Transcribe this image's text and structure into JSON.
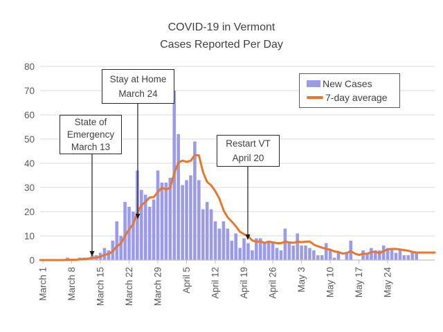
{
  "title": {
    "line1": "COVID-19 in Vermont",
    "line2": "Cases Reported Per Day"
  },
  "legend": {
    "items": [
      {
        "label": "New Cases",
        "type": "bar"
      },
      {
        "label": "7-day average",
        "type": "line"
      }
    ]
  },
  "annotations": [
    {
      "lines": [
        "State of",
        "Emergency",
        "March 13"
      ]
    },
    {
      "lines": [
        "Stay at Home",
        "March 24"
      ]
    },
    {
      "lines": [
        "Restart VT",
        "April 20"
      ]
    }
  ],
  "colors": {
    "bar": "#9b9be8",
    "line": "#e8772e",
    "grid": "#d9d9d9",
    "axis": "#bfbfbf",
    "text": "#404040",
    "tick_text": "#595959",
    "annotation_arrow": "#1a1a1a"
  },
  "chart_data": {
    "type": "bar",
    "title": "COVID-19 in Vermont",
    "subtitle": "Cases Reported Per Day",
    "xlabel": "",
    "ylabel": "",
    "x_unit": "day",
    "date_range": "March 1 - May 31",
    "x_tick_labels": [
      "March 1",
      "March 8",
      "March 15",
      "March 22",
      "March 29",
      "April 5",
      "April 12",
      "April 19",
      "April 26",
      "May 3",
      "May 10",
      "May 17",
      "May 24"
    ],
    "x_tick_day_indices": [
      0,
      7,
      14,
      21,
      28,
      35,
      42,
      49,
      56,
      63,
      70,
      77,
      84
    ],
    "ylim": [
      0,
      80
    ],
    "y_ticks": [
      0,
      10,
      20,
      30,
      40,
      50,
      60,
      70,
      80
    ],
    "grid": "horizontal",
    "legend_position": "top-right",
    "series": [
      {
        "name": "New Cases",
        "type": "bar",
        "values": [
          0,
          0,
          0,
          0,
          0,
          0,
          1,
          0,
          0,
          1,
          1,
          1,
          2,
          2,
          3,
          5,
          4,
          8,
          16,
          10,
          24,
          22,
          20,
          37,
          29,
          27,
          22,
          25,
          37,
          32,
          32,
          34,
          70,
          52,
          31,
          33,
          35,
          49,
          33,
          21,
          24,
          21,
          16,
          13,
          16,
          13,
          8,
          11,
          5,
          9,
          7,
          4,
          9,
          9,
          7,
          8,
          7,
          5,
          4,
          13,
          7,
          6,
          11,
          6,
          6,
          5,
          4,
          2,
          2,
          7,
          4,
          1,
          3,
          0,
          3,
          8,
          0,
          0,
          4,
          3,
          5,
          4,
          4,
          6,
          5,
          5,
          3,
          4,
          2,
          2,
          3,
          3
        ]
      },
      {
        "name": "7-day average",
        "type": "line",
        "values": [
          0,
          0,
          0,
          0,
          0,
          0,
          0.1,
          0.1,
          0.1,
          0.3,
          0.4,
          0.6,
          0.9,
          1.0,
          1.4,
          2.1,
          2.6,
          3.6,
          5.7,
          6.9,
          10.0,
          12.7,
          14.9,
          19.6,
          22.6,
          24.1,
          25.9,
          26.0,
          28.1,
          29.9,
          29.1,
          29.9,
          36.0,
          40.3,
          41.1,
          40.6,
          41.0,
          43.4,
          43.3,
          36.3,
          32.3,
          30.9,
          28.4,
          25.3,
          20.6,
          17.7,
          15.9,
          14.0,
          11.7,
          10.7,
          9.9,
          8.1,
          7.6,
          7.7,
          7.1,
          7.6,
          7.3,
          7.0,
          7.0,
          7.6,
          7.3,
          7.1,
          7.6,
          7.4,
          7.6,
          7.7,
          6.4,
          5.7,
          5.1,
          4.6,
          4.3,
          3.6,
          3.3,
          2.7,
          2.9,
          3.7,
          2.7,
          2.1,
          2.6,
          2.6,
          3.3,
          3.4,
          2.9,
          3.7,
          4.4,
          4.6,
          4.6,
          4.4,
          4.1,
          3.9,
          3.4,
          3.1
        ]
      }
    ],
    "event_annotations": [
      {
        "text": "State of Emergency",
        "date": "March 13"
      },
      {
        "text": "Stay at Home",
        "date": "March 24"
      },
      {
        "text": "Restart VT",
        "date": "April 20"
      }
    ]
  }
}
